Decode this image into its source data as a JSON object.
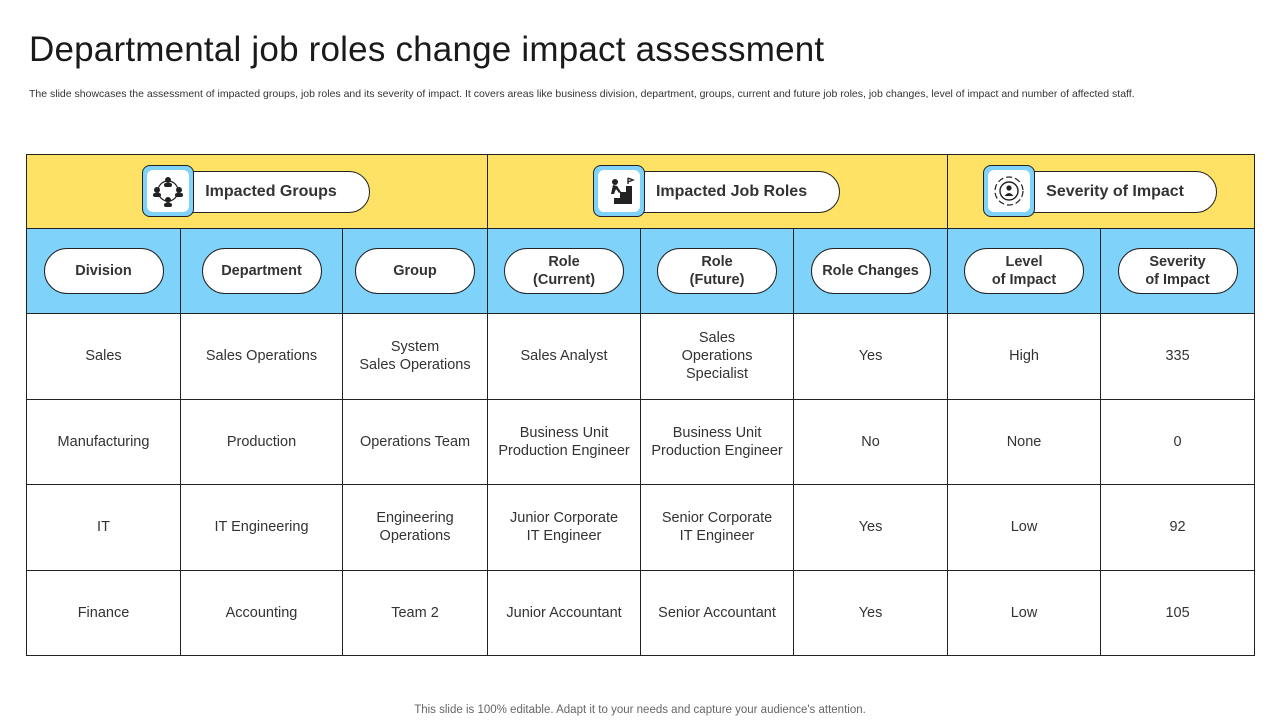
{
  "title": "Departmental job roles change impact assessment",
  "subtitle": "The slide showcases the assessment of impacted groups, job roles and its severity of impact. It covers areas like business division, department, groups, current and future job roles, job changes, level of impact and number of affected staff.",
  "groups": [
    {
      "label": "Impacted Groups",
      "icon": "people-network-icon"
    },
    {
      "label": "Impacted Job Roles",
      "icon": "career-stairs-icon"
    },
    {
      "label": "Severity of Impact",
      "icon": "target-person-icon"
    }
  ],
  "columns": [
    "Division",
    "Department",
    "Group",
    "Role\n(Current)",
    "Role\n(Future)",
    "Role Changes",
    "Level\nof Impact",
    "Severity\nof Impact"
  ],
  "rows": [
    [
      "Sales",
      "Sales Operations",
      "System\nSales Operations",
      "Sales Analyst",
      "Sales\nOperations\nSpecialist",
      "Yes",
      "High",
      "335"
    ],
    [
      "Manufacturing",
      "Production",
      "Operations Team",
      "Business Unit\nProduction Engineer",
      "Business Unit\nProduction Engineer",
      "No",
      "None",
      "0"
    ],
    [
      "IT",
      "IT Engineering",
      "Engineering\nOperations",
      "Junior Corporate\nIT Engineer",
      "Senior Corporate\nIT Engineer",
      "Yes",
      "Low",
      "92"
    ],
    [
      "Finance",
      "Accounting",
      "Team 2",
      "Junior Accountant",
      "Senior Accountant",
      "Yes",
      "Low",
      "105"
    ]
  ],
  "footer": "This slide is 100% editable. Adapt it to your needs and capture your audience's attention.",
  "colors": {
    "header_yellow": "#fee266",
    "header_blue": "#7fd2fa"
  }
}
